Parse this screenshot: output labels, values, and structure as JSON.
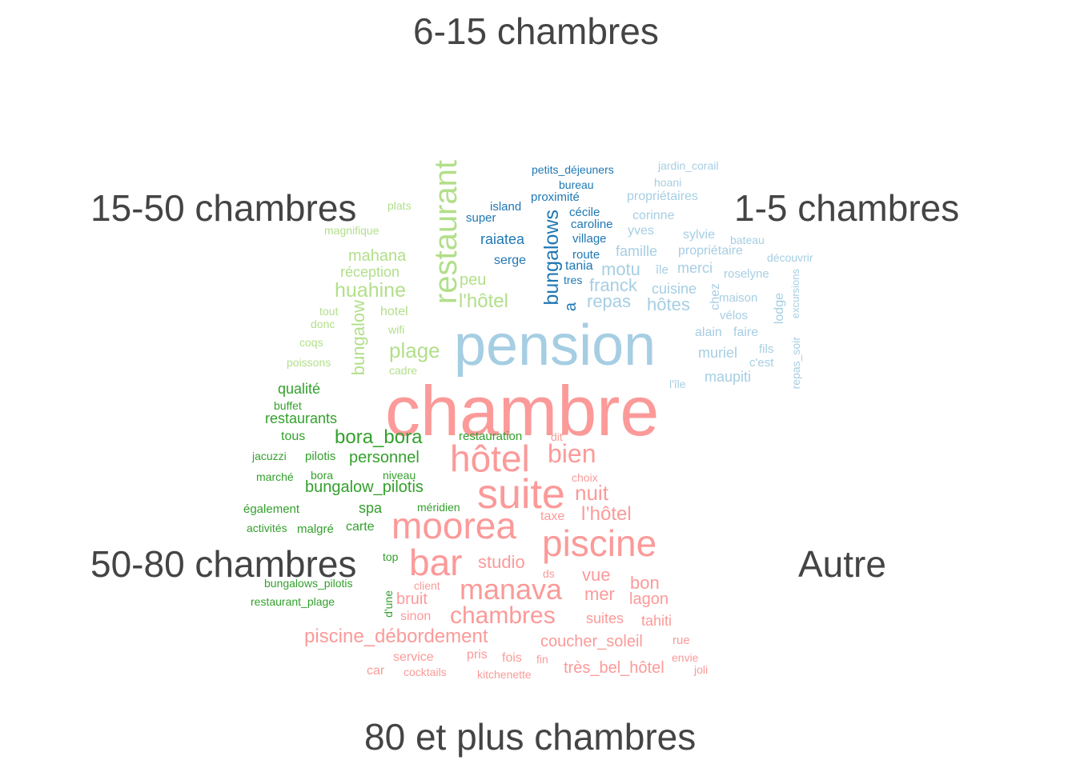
{
  "chart_data": {
    "type": "comparison_wordcloud",
    "groups": [
      {
        "key": "g615",
        "label": "6-15 chambres",
        "color": "#1F78B4"
      },
      {
        "key": "g15",
        "label": "15-50 chambres",
        "color": "#B2DF8A"
      },
      {
        "key": "g15",
        "label": "1-5 chambres",
        "color": "#A6CEE3"
      },
      {
        "key": "g5080",
        "label": "50-80 chambres",
        "color": "#33A02C"
      },
      {
        "key": "gaut",
        "label": "Autre",
        "color": ""
      },
      {
        "key": "g80",
        "label": "80 et plus chambres",
        "color": "#FB9A99"
      }
    ],
    "words": [
      {
        "text": "chambre",
        "group": "80 et plus chambres",
        "weight": 88
      },
      {
        "text": "pension",
        "group": "1-5 chambres",
        "weight": 72
      },
      {
        "text": "suite",
        "group": "80 et plus chambres",
        "weight": 52
      },
      {
        "text": "hôtel",
        "group": "80 et plus chambres",
        "weight": 46
      },
      {
        "text": "moorea",
        "group": "80 et plus chambres",
        "weight": 46
      },
      {
        "text": "bar",
        "group": "80 et plus chambres",
        "weight": 46
      },
      {
        "text": "piscine",
        "group": "80 et plus chambres",
        "weight": 46
      },
      {
        "text": "restaurant",
        "group": "15-50 chambres",
        "weight": 40
      },
      {
        "text": "manava",
        "group": "80 et plus chambres",
        "weight": 36
      },
      {
        "text": "bien",
        "group": "80 et plus chambres",
        "weight": 32
      },
      {
        "text": "chambres",
        "group": "80 et plus chambres",
        "weight": 30
      },
      {
        "text": "bungalows",
        "group": "6-15 chambres",
        "weight": 25
      },
      {
        "text": "piscine_débordement",
        "group": "80 et plus chambres",
        "weight": 24
      },
      {
        "text": "huahine",
        "group": "15-50 chambres",
        "weight": 25
      },
      {
        "text": "plage",
        "group": "15-50 chambres",
        "weight": 26
      },
      {
        "text": "l'hôtel",
        "group": "15-50 chambres",
        "weight": 24
      },
      {
        "text": "nuit",
        "group": "80 et plus chambres",
        "weight": 26
      },
      {
        "text": "l’hôtel",
        "group": "80 et plus chambres",
        "weight": 24
      },
      {
        "text": "bora_bora",
        "group": "50-80 chambres",
        "weight": 24
      },
      {
        "text": "bungalow",
        "group": "15-50 chambres",
        "weight": 22
      },
      {
        "text": "studio",
        "group": "80 et plus chambres",
        "weight": 22
      },
      {
        "text": "vue",
        "group": "80 et plus chambres",
        "weight": 22
      },
      {
        "text": "bon",
        "group": "80 et plus chambres",
        "weight": 22
      },
      {
        "text": "mer",
        "group": "80 et plus chambres",
        "weight": 22
      },
      {
        "text": "franck",
        "group": "1-5 chambres",
        "weight": 22
      },
      {
        "text": "hôtes",
        "group": "1-5 chambres",
        "weight": 22
      },
      {
        "text": "motu",
        "group": "1-5 chambres",
        "weight": 22
      },
      {
        "text": "repas",
        "group": "1-5 chambres",
        "weight": 22
      },
      {
        "text": "mahana",
        "group": "15-50 chambres",
        "weight": 20
      },
      {
        "text": "personnel",
        "group": "50-80 chambres",
        "weight": 20
      },
      {
        "text": "bungalow_pilotis",
        "group": "50-80 chambres",
        "weight": 20
      },
      {
        "text": "peu",
        "group": "15-50 chambres",
        "weight": 20
      },
      {
        "text": "réception",
        "group": "15-50 chambres",
        "weight": 18
      },
      {
        "text": "restaurants",
        "group": "50-80 chambres",
        "weight": 18
      },
      {
        "text": "qualité",
        "group": "50-80 chambres",
        "weight": 18
      },
      {
        "text": "spa",
        "group": "50-80 chambres",
        "weight": 18
      },
      {
        "text": "raiatea",
        "group": "6-15 chambres",
        "weight": 18
      },
      {
        "text": "a",
        "group": "6-15 chambres",
        "weight": 20
      },
      {
        "text": "bruit",
        "group": "80 et plus chambres",
        "weight": 20
      },
      {
        "text": "suites",
        "group": "80 et plus chambres",
        "weight": 18
      },
      {
        "text": "lagon",
        "group": "80 et plus chambres",
        "weight": 20
      },
      {
        "text": "tahiti",
        "group": "80 et plus chambres",
        "weight": 18
      },
      {
        "text": "coucher_soleil",
        "group": "80 et plus chambres",
        "weight": 20
      },
      {
        "text": "très_bel_hôtel",
        "group": "80 et plus chambres",
        "weight": 20
      },
      {
        "text": "famille",
        "group": "1-5 chambres",
        "weight": 18
      },
      {
        "text": "maupiti",
        "group": "1-5 chambres",
        "weight": 18
      },
      {
        "text": "muriel",
        "group": "1-5 chambres",
        "weight": 18
      },
      {
        "text": "merci",
        "group": "1-5 chambres",
        "weight": 18
      },
      {
        "text": "cuisine",
        "group": "1-5 chambres",
        "weight": 18
      },
      {
        "text": "serge",
        "group": "6-15 chambres",
        "weight": 16
      },
      {
        "text": "tania",
        "group": "6-15 chambres",
        "weight": 16
      },
      {
        "text": "hotel",
        "group": "15-50 chambres",
        "weight": 16
      },
      {
        "text": "tous",
        "group": "50-80 chambres",
        "weight": 16
      },
      {
        "text": "carte",
        "group": "50-80 chambres",
        "weight": 16
      },
      {
        "text": "sinon",
        "group": "80 et plus chambres",
        "weight": 16
      },
      {
        "text": "pris",
        "group": "80 et plus chambres",
        "weight": 16
      },
      {
        "text": "service",
        "group": "80 et plus chambres",
        "weight": 16
      },
      {
        "text": "corinne",
        "group": "1-5 chambres",
        "weight": 16
      },
      {
        "text": "yves",
        "group": "1-5 chambres",
        "weight": 16
      },
      {
        "text": "propriétaires",
        "group": "1-5 chambres",
        "weight": 16
      },
      {
        "text": "propriétaire",
        "group": "1-5 chambres",
        "weight": 16
      },
      {
        "text": "alain",
        "group": "1-5 chambres",
        "weight": 16
      },
      {
        "text": "faire",
        "group": "1-5 chambres",
        "weight": 16
      },
      {
        "text": "chez",
        "group": "1-5 chambres",
        "weight": 16
      },
      {
        "text": "lodge",
        "group": "1-5 chambres",
        "weight": 16
      },
      {
        "text": "sylvie",
        "group": "1-5 chambres",
        "weight": 16
      },
      {
        "text": "car",
        "group": "80 et plus chambres",
        "weight": 16
      },
      {
        "text": "fois",
        "group": "80 et plus chambres",
        "weight": 16
      },
      {
        "text": "taxe",
        "group": "80 et plus chambres",
        "weight": 16
      },
      {
        "text": "restauration",
        "group": "50-80 chambres",
        "weight": 15
      },
      {
        "text": "pilotis",
        "group": "50-80 chambres",
        "weight": 15
      },
      {
        "text": "également",
        "group": "50-80 chambres",
        "weight": 15
      },
      {
        "text": "malgré",
        "group": "50-80 chambres",
        "weight": 15
      },
      {
        "text": "rue",
        "group": "80 et plus chambres",
        "weight": 15
      },
      {
        "text": "cécile",
        "group": "6-15 chambres",
        "weight": 15
      },
      {
        "text": "caroline",
        "group": "6-15 chambres",
        "weight": 15
      },
      {
        "text": "village",
        "group": "6-15 chambres",
        "weight": 15
      },
      {
        "text": "proximité",
        "group": "6-15 chambres",
        "weight": 15
      },
      {
        "text": "island",
        "group": "6-15 chambres",
        "weight": 15
      },
      {
        "text": "super",
        "group": "6-15 chambres",
        "weight": 15
      },
      {
        "text": "route",
        "group": "6-15 chambres",
        "weight": 15
      },
      {
        "text": "île",
        "group": "1-5 chambres",
        "weight": 15
      },
      {
        "text": "maison",
        "group": "1-5 chambres",
        "weight": 15
      },
      {
        "text": "vélos",
        "group": "1-5 chambres",
        "weight": 15
      },
      {
        "text": "roselyne",
        "group": "1-5 chambres",
        "weight": 15
      },
      {
        "text": "c'est",
        "group": "1-5 chambres",
        "weight": 15
      },
      {
        "text": "fils",
        "group": "1-5 chambres",
        "weight": 15
      },
      {
        "text": "hoani",
        "group": "1-5 chambres",
        "weight": 14
      },
      {
        "text": "bateau",
        "group": "1-5 chambres",
        "weight": 14
      },
      {
        "text": "découvrir",
        "group": "1-5 chambres",
        "weight": 14
      },
      {
        "text": "jardin_corail",
        "group": "1-5 chambres",
        "weight": 14
      },
      {
        "text": "excursions",
        "group": "1-5 chambres",
        "weight": 13
      },
      {
        "text": "repas_soir",
        "group": "1-5 chambres",
        "weight": 14
      },
      {
        "text": "l'île",
        "group": "1-5 chambres",
        "weight": 14
      },
      {
        "text": "plats",
        "group": "15-50 chambres",
        "weight": 14
      },
      {
        "text": "magnifique",
        "group": "15-50 chambres",
        "weight": 14
      },
      {
        "text": "tout",
        "group": "15-50 chambres",
        "weight": 14
      },
      {
        "text": "donc",
        "group": "15-50 chambres",
        "weight": 14
      },
      {
        "text": "wifi",
        "group": "15-50 chambres",
        "weight": 14
      },
      {
        "text": "coqs",
        "group": "15-50 chambres",
        "weight": 14
      },
      {
        "text": "poissons",
        "group": "15-50 chambres",
        "weight": 14
      },
      {
        "text": "cadre",
        "group": "15-50 chambres",
        "weight": 14
      },
      {
        "text": "buffet",
        "group": "50-80 chambres",
        "weight": 14
      },
      {
        "text": "jacuzzi",
        "group": "50-80 chambres",
        "weight": 14
      },
      {
        "text": "marché",
        "group": "50-80 chambres",
        "weight": 14
      },
      {
        "text": "bora",
        "group": "50-80 chambres",
        "weight": 14
      },
      {
        "text": "niveau",
        "group": "50-80 chambres",
        "weight": 14
      },
      {
        "text": "méridien",
        "group": "50-80 chambres",
        "weight": 14
      },
      {
        "text": "activités",
        "group": "50-80 chambres",
        "weight": 14
      },
      {
        "text": "top",
        "group": "50-80 chambres",
        "weight": 14
      },
      {
        "text": "bungalows_pilotis",
        "group": "50-80 chambres",
        "weight": 14
      },
      {
        "text": "restaurant_plage",
        "group": "50-80 chambres",
        "weight": 14
      },
      {
        "text": "d'une",
        "group": "50-80 chambres",
        "weight": 14
      },
      {
        "text": "petits_déjeuners",
        "group": "6-15 chambres",
        "weight": 14
      },
      {
        "text": "bureau",
        "group": "6-15 chambres",
        "weight": 14
      },
      {
        "text": "tres",
        "group": "6-15 chambres",
        "weight": 14
      },
      {
        "text": "dit",
        "group": "80 et plus chambres",
        "weight": 14
      },
      {
        "text": "choix",
        "group": "80 et plus chambres",
        "weight": 14
      },
      {
        "text": "ds",
        "group": "80 et plus chambres",
        "weight": 14
      },
      {
        "text": "client",
        "group": "80 et plus chambres",
        "weight": 14
      },
      {
        "text": "envie",
        "group": "80 et plus chambres",
        "weight": 14
      },
      {
        "text": "joli",
        "group": "80 et plus chambres",
        "weight": 14
      },
      {
        "text": "fin",
        "group": "80 et plus chambres",
        "weight": 14
      },
      {
        "text": "cocktails",
        "group": "80 et plus chambres",
        "weight": 14
      },
      {
        "text": "kitchenette",
        "group": "80 et plus chambres",
        "weight": 14
      }
    ]
  }
}
